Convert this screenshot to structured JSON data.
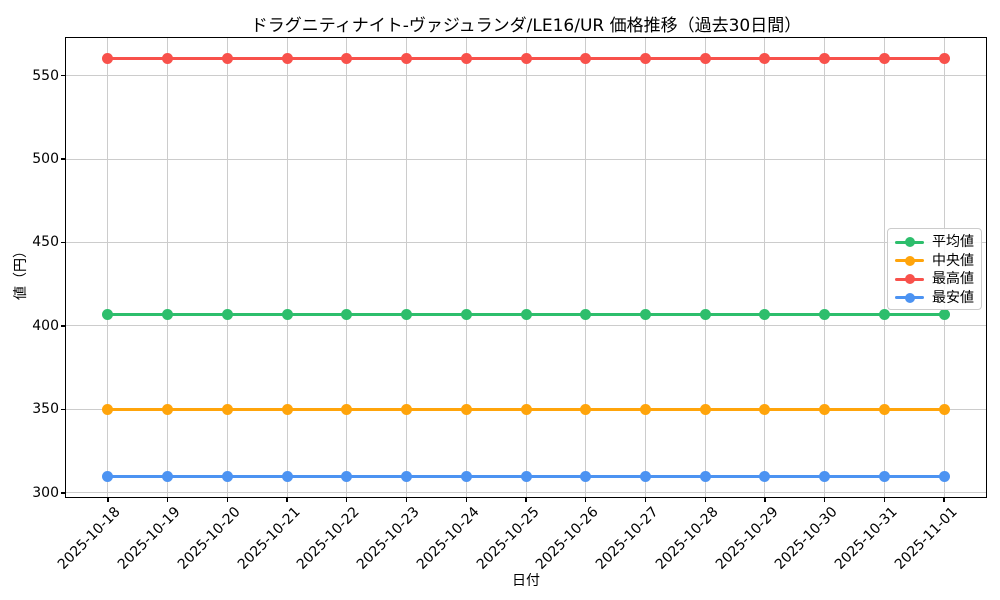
{
  "chart_data": {
    "type": "line",
    "title": "ドラグニティナイト-ヴァジュランダ/LE16/UR 価格推移（過去30日間）",
    "xlabel": "日付",
    "ylabel": "値（円）",
    "x": [
      "2025-10-18",
      "2025-10-19",
      "2025-10-20",
      "2025-10-21",
      "2025-10-22",
      "2025-10-23",
      "2025-10-24",
      "2025-10-25",
      "2025-10-26",
      "2025-10-27",
      "2025-10-28",
      "2025-10-29",
      "2025-10-30",
      "2025-10-31",
      "2025-11-01"
    ],
    "yticks": [
      300,
      350,
      400,
      450,
      500,
      550
    ],
    "ylim": [
      297.5,
      572.5
    ],
    "grid": true,
    "legend_position": "center right",
    "series": [
      {
        "id": "average",
        "name": "平均値",
        "color": "#2dbe6c",
        "values": [
          407,
          407,
          407,
          407,
          407,
          407,
          407,
          407,
          407,
          407,
          407,
          407,
          407,
          407,
          407
        ]
      },
      {
        "id": "median",
        "name": "中央値",
        "color": "#ffa40b",
        "values": [
          350,
          350,
          350,
          350,
          350,
          350,
          350,
          350,
          350,
          350,
          350,
          350,
          350,
          350,
          350
        ]
      },
      {
        "id": "max",
        "name": "最高値",
        "color": "#f8514b",
        "values": [
          560,
          560,
          560,
          560,
          560,
          560,
          560,
          560,
          560,
          560,
          560,
          560,
          560,
          560,
          560
        ]
      },
      {
        "id": "min",
        "name": "最安値",
        "color": "#4c93f2",
        "values": [
          310,
          310,
          310,
          310,
          310,
          310,
          310,
          310,
          310,
          310,
          310,
          310,
          310,
          310,
          310
        ]
      }
    ]
  }
}
